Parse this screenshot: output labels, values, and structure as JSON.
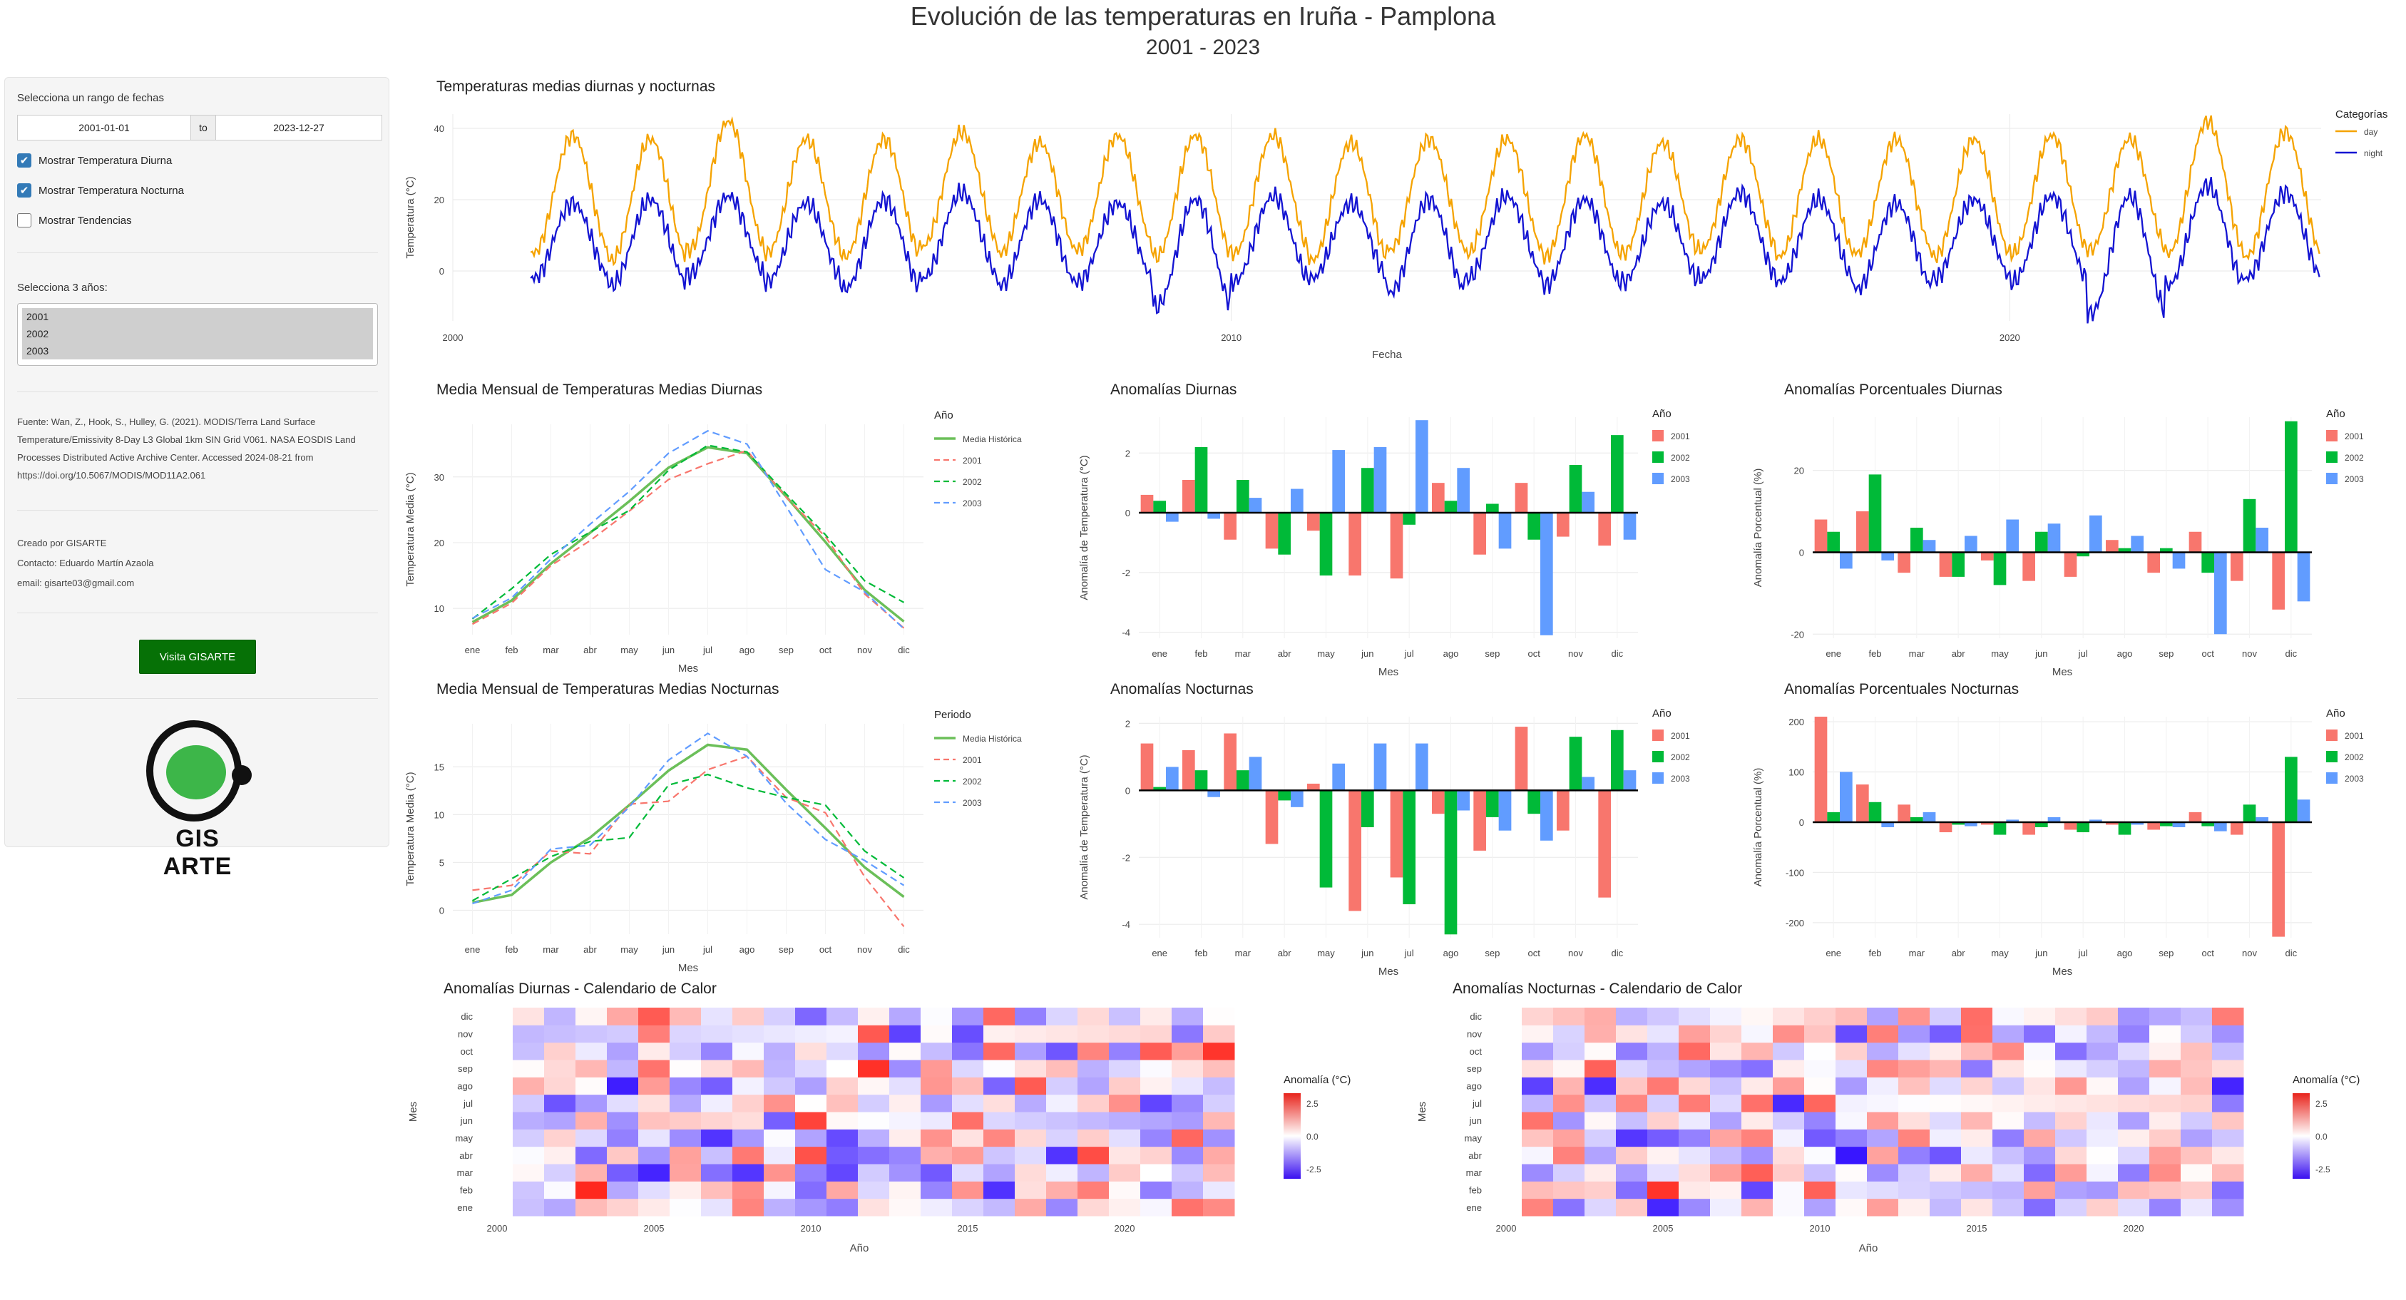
{
  "header": {
    "title": "Evolución de las temperaturas en Iruña - Pamplona",
    "subtitle": "2001 - 2023"
  },
  "sidebar": {
    "date_range_label": "Selecciona un rango de fechas",
    "date_from": "2001-01-01",
    "date_to_word": "to",
    "date_to": "2023-12-27",
    "checkboxes": [
      {
        "label": "Mostrar Temperatura Diurna",
        "checked": true
      },
      {
        "label": "Mostrar Temperatura Nocturna",
        "checked": true
      },
      {
        "label": "Mostrar Tendencias",
        "checked": false
      }
    ],
    "years_label": "Selecciona 3 años:",
    "years_selected": [
      "2001",
      "2002",
      "2003"
    ],
    "source": "Fuente: Wan, Z., Hook, S., Hulley, G. (2021). MODIS/Terra Land Surface Temperature/Emissivity 8-Day L3 Global 1km SIN Grid V061. NASA EOSDIS Land Processes Distributed Active Archive Center. Accessed 2024-08-21 from https://doi.org/10.5067/MODIS/MOD11A2.061",
    "credits": [
      "Creado por GISARTE",
      "Contacto: Eduardo Martín Azaola",
      "email: gisarte03@gmail.com"
    ],
    "button_label": "Visita GISARTE",
    "logo_text": "GIS ARTE"
  },
  "colors": {
    "day": "#F5A300",
    "night": "#1414D2",
    "hist": "#6BBF59",
    "y2001": "#F8766D",
    "y2002": "#00BA38",
    "y2003": "#619CFF",
    "accent": "#337ab7",
    "button": "#067106"
  },
  "months": [
    "ene",
    "feb",
    "mar",
    "abr",
    "may",
    "jun",
    "jul",
    "ago",
    "sep",
    "oct",
    "nov",
    "dic"
  ],
  "charts": {
    "timeseries": {
      "title": "Temperaturas medias diurnas y nocturnas",
      "xlabel": "Fecha",
      "ylabel": "Temperatura (°C)",
      "legend_title": "Categorías",
      "legend": [
        "day",
        "night"
      ],
      "x_ticks": [
        "2000",
        "2010",
        "2020"
      ],
      "y_ticks": [
        "0",
        "20",
        "40"
      ],
      "x_range": [
        2000,
        2024
      ],
      "y_range": [
        -14,
        44
      ],
      "day_min_by_year": [
        5,
        3,
        6,
        5,
        4,
        7,
        5,
        6,
        4,
        5,
        3,
        6,
        5,
        4,
        5,
        6,
        4,
        5,
        4,
        5,
        6,
        5,
        4
      ],
      "day_max_by_year": [
        38,
        37,
        42,
        37,
        37,
        39,
        36,
        38,
        38,
        38,
        36,
        37,
        37,
        38,
        36,
        37,
        37,
        37,
        37,
        38,
        37,
        42,
        39
      ],
      "night_min_by_year": [
        -2,
        -4,
        -1,
        -3,
        -5,
        -2,
        -4,
        -3,
        -10,
        -3,
        -2,
        -6,
        -2,
        -4,
        -3,
        -2,
        -3,
        -5,
        -2,
        -3,
        -12,
        -4,
        -2
      ],
      "night_max_by_year": [
        19,
        20,
        21,
        19,
        20,
        22,
        20,
        19,
        20,
        21,
        19,
        20,
        21,
        20,
        19,
        22,
        20,
        19,
        20,
        21,
        21,
        24,
        22
      ]
    },
    "monthly_day": {
      "title": "Media Mensual de Temperaturas Medias Diurnas",
      "xlabel": "Mes",
      "ylabel": "Temperatura Media (°C)",
      "legend_title": "Año",
      "y_ticks": [
        "10",
        "20",
        "30"
      ],
      "y_range": [
        6,
        38
      ],
      "series": [
        {
          "name": "Media Histórica",
          "values": [
            7.9,
            11.2,
            16.8,
            21.5,
            26.3,
            31.4,
            34.5,
            33.6,
            27.0,
            20.1,
            12.8,
            8.0
          ]
        },
        {
          "name": "2001",
          "values": [
            7.6,
            10.8,
            16.5,
            20.3,
            24.8,
            29.6,
            32.0,
            34.0,
            26.9,
            20.9,
            12.2,
            7.0
          ]
        },
        {
          "name": "2002",
          "values": [
            8.4,
            13.0,
            18.2,
            21.6,
            24.9,
            31.0,
            34.8,
            33.8,
            27.4,
            21.2,
            14.2,
            10.9
          ]
        },
        {
          "name": "2003",
          "values": [
            8.5,
            11.6,
            17.5,
            22.8,
            27.8,
            33.6,
            37.0,
            35.0,
            25.5,
            15.9,
            12.5,
            6.9
          ]
        }
      ]
    },
    "anom_day": {
      "title": "Anomalías Diurnas",
      "xlabel": "Mes",
      "ylabel": "Anomalía de Temperatura (°C)",
      "legend_title": "Año",
      "legend": [
        "2001",
        "2002",
        "2003"
      ],
      "y_ticks": [
        "-4",
        "-2",
        "0",
        "2"
      ],
      "y_range": [
        -4.2,
        3.2
      ],
      "series": [
        {
          "name": "2001",
          "values": [
            0.6,
            1.1,
            -0.9,
            -1.2,
            -0.6,
            -2.1,
            -2.2,
            1.0,
            -1.4,
            1.0,
            -0.8,
            -1.1
          ]
        },
        {
          "name": "2002",
          "values": [
            0.4,
            2.2,
            1.1,
            -1.4,
            -2.1,
            1.5,
            -0.4,
            0.4,
            0.3,
            -0.9,
            1.6,
            2.6
          ]
        },
        {
          "name": "2003",
          "values": [
            -0.3,
            -0.2,
            0.5,
            0.8,
            2.1,
            2.2,
            3.1,
            1.5,
            -1.2,
            -4.1,
            0.7,
            -0.9
          ]
        }
      ]
    },
    "anom_pct_day": {
      "title": "Anomalías Porcentuales Diurnas",
      "xlabel": "Mes",
      "ylabel": "Anomalía Porcentual (%)",
      "legend_title": "Año",
      "legend": [
        "2001",
        "2002",
        "2003"
      ],
      "y_ticks": [
        "-20",
        "0",
        "20"
      ],
      "y_range": [
        -21,
        33
      ],
      "series": [
        {
          "name": "2001",
          "values": [
            8,
            10,
            -5,
            -6,
            -2,
            -7,
            -6,
            3,
            -5,
            5,
            -7,
            -14
          ]
        },
        {
          "name": "2002",
          "values": [
            5,
            19,
            6,
            -6,
            -8,
            5,
            -1,
            1,
            1,
            -5,
            13,
            32
          ]
        },
        {
          "name": "2003",
          "values": [
            -4,
            -2,
            3,
            4,
            8,
            7,
            9,
            4,
            -4,
            -20,
            6,
            -12
          ]
        }
      ]
    },
    "monthly_night": {
      "title": "Media Mensual de Temperaturas Medias Nocturnas",
      "xlabel": "Mes",
      "ylabel": "Temperatura Media (°C)",
      "legend_title": "Periodo",
      "y_ticks": [
        "0",
        "5",
        "10",
        "15"
      ],
      "y_range": [
        -2.5,
        19.5
      ],
      "series": [
        {
          "name": "Media Histórica",
          "values": [
            0.8,
            1.6,
            5.0,
            7.6,
            11.0,
            14.6,
            17.3,
            16.8,
            12.6,
            8.6,
            4.5,
            1.4
          ]
        },
        {
          "name": "2001",
          "values": [
            2.1,
            2.6,
            6.2,
            5.9,
            11.1,
            11.4,
            14.7,
            16.1,
            11.8,
            10.2,
            3.5,
            -1.7
          ]
        },
        {
          "name": "2002",
          "values": [
            1.0,
            3.3,
            5.6,
            7.2,
            7.6,
            13.1,
            14.2,
            12.8,
            11.8,
            11.0,
            6.2,
            3.4
          ]
        },
        {
          "name": "2003",
          "values": [
            0.7,
            2.1,
            6.4,
            6.8,
            10.8,
            15.7,
            18.5,
            16.1,
            11.2,
            7.4,
            5.2,
            2.6
          ]
        }
      ]
    },
    "anom_night": {
      "title": "Anomalías Nocturnas",
      "xlabel": "Mes",
      "ylabel": "Anomalía de Temperatura (°C)",
      "legend_title": "Año",
      "legend": [
        "2001",
        "2002",
        "2003"
      ],
      "y_ticks": [
        "-4",
        "-2",
        "0",
        "2"
      ],
      "y_range": [
        -4.4,
        2.2
      ],
      "series": [
        {
          "name": "2001",
          "values": [
            1.4,
            1.2,
            1.7,
            -1.6,
            0.2,
            -3.6,
            -2.6,
            -0.7,
            -1.8,
            1.9,
            -1.2,
            -3.2
          ]
        },
        {
          "name": "2002",
          "values": [
            0.1,
            0.6,
            0.6,
            -0.3,
            -2.9,
            -1.1,
            -3.4,
            -4.3,
            -0.8,
            -0.7,
            1.6,
            1.8
          ]
        },
        {
          "name": "2003",
          "values": [
            0.7,
            -0.2,
            1.0,
            -0.5,
            0.8,
            1.4,
            1.4,
            -0.6,
            -1.2,
            -1.5,
            0.4,
            0.6
          ]
        }
      ]
    },
    "anom_pct_night": {
      "title": "Anomalías Porcentuales Nocturnas",
      "xlabel": "Mes",
      "ylabel": "Anomalía Porcentual (%)",
      "legend_title": "Año",
      "legend": [
        "2001",
        "2002",
        "2003"
      ],
      "y_ticks": [
        "-200",
        "-100",
        "0",
        "100",
        "200"
      ],
      "y_range": [
        -230,
        210
      ],
      "series": [
        {
          "name": "2001",
          "values": [
            210,
            75,
            35,
            -20,
            -5,
            -25,
            -15,
            -5,
            -15,
            20,
            -25,
            -228
          ]
        },
        {
          "name": "2002",
          "values": [
            20,
            40,
            10,
            -5,
            -25,
            -10,
            -20,
            -25,
            -8,
            -8,
            35,
            130
          ]
        },
        {
          "name": "2003",
          "values": [
            100,
            -10,
            20,
            -8,
            5,
            10,
            5,
            -5,
            -10,
            -18,
            10,
            45
          ]
        }
      ]
    },
    "heat_day": {
      "title": "Anomalías Diurnas - Calendario de Calor",
      "xlabel": "Año",
      "ylabel": "Mes",
      "legend_title": "Anomalía (°C)",
      "legend_ticks": [
        "2.5",
        "0.0",
        "-2.5"
      ],
      "x_ticks": [
        "2000",
        "2005",
        "2010",
        "2015",
        "2020"
      ],
      "x_range": [
        1999.5,
        2024.5
      ],
      "years": [
        2001,
        2023
      ],
      "seed": 7
    },
    "heat_night": {
      "title": "Anomalías Nocturnas - Calendario de Calor",
      "xlabel": "Año",
      "ylabel": "Mes",
      "legend_title": "Anomalía (°C)",
      "legend_ticks": [
        "2.5",
        "0.0",
        "-2.5"
      ],
      "x_ticks": [
        "2000",
        "2005",
        "2010",
        "2015",
        "2020"
      ],
      "x_range": [
        1999.5,
        2024.5
      ],
      "years": [
        2001,
        2023
      ],
      "seed": 19
    }
  }
}
